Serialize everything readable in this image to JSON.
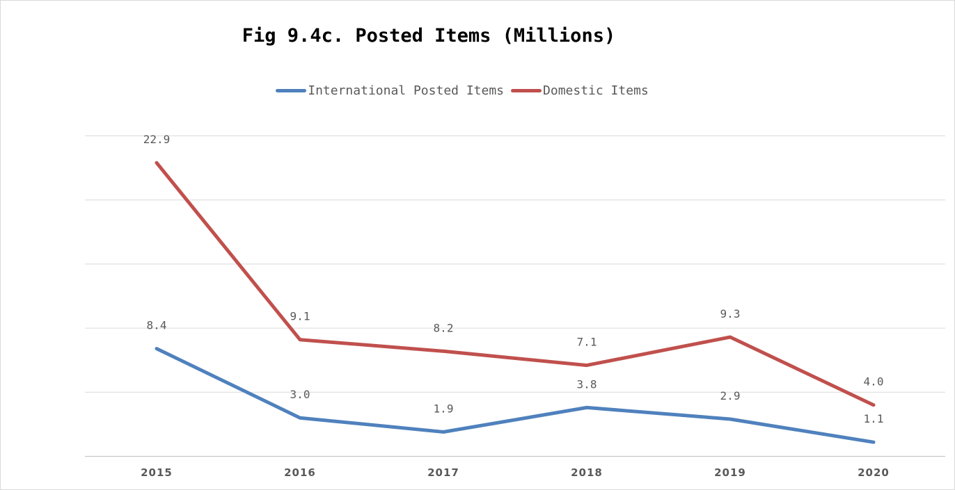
{
  "chart_data": {
    "type": "line",
    "title": "Fig 9.4c. Posted Items (Millions)",
    "xlabel": "",
    "ylabel": "",
    "categories": [
      "2015",
      "2016",
      "2017",
      "2018",
      "2019",
      "2020"
    ],
    "ylim": [
      0,
      25
    ],
    "grid": true,
    "legend_position": "top",
    "series": [
      {
        "name": "International Posted Items",
        "color": "#4f81bd",
        "values": [
          8.4,
          3.0,
          1.9,
          3.8,
          2.9,
          1.1
        ],
        "labels": [
          "8.4",
          "3.0",
          "1.9",
          "3.8",
          "2.9",
          "1.1"
        ]
      },
      {
        "name": "Domestic Items",
        "color": "#c0504d",
        "values": [
          22.9,
          9.1,
          8.2,
          7.1,
          9.3,
          4.0
        ],
        "labels": [
          "22.9",
          "9.1",
          "8.2",
          "7.1",
          "9.3",
          "4.0"
        ]
      }
    ]
  }
}
